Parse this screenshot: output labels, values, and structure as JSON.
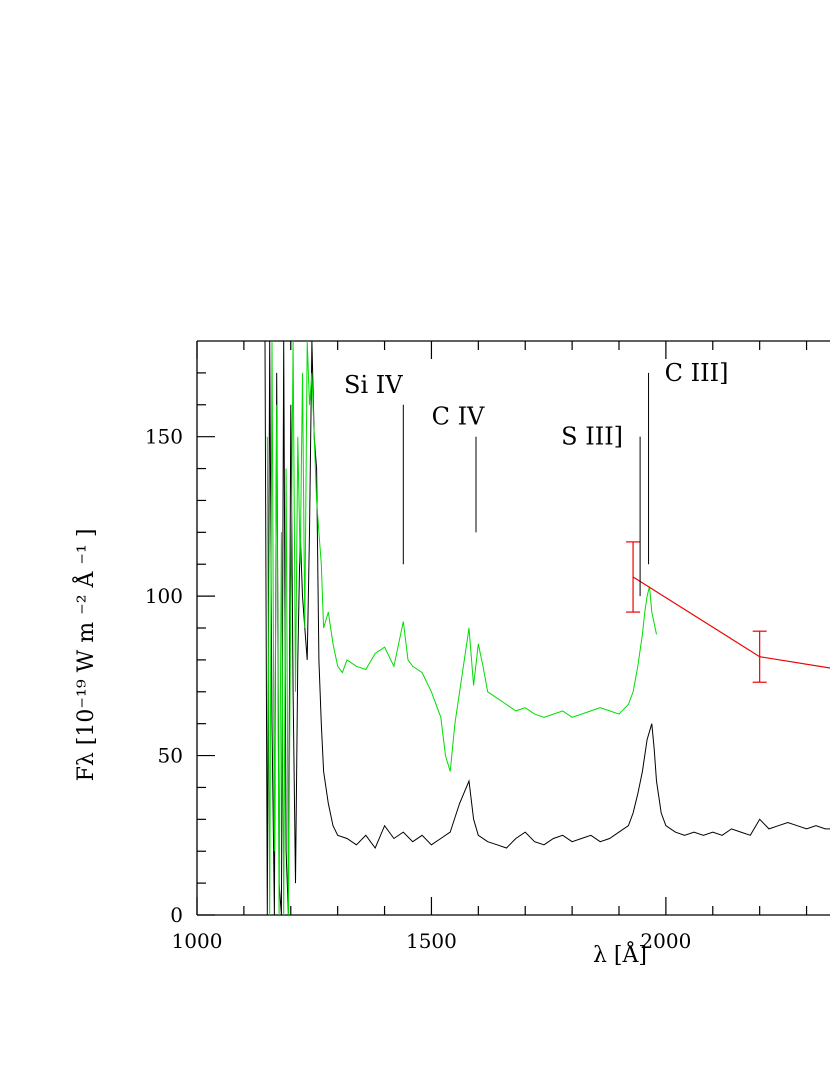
{
  "chart_data": {
    "type": "line",
    "xlabel": "λ [Å]",
    "ylabel": "F_λ [10^-19 W m^-2 Å^-1]",
    "ylabel_display": "Fλ [10⁻¹⁹ W m ⁻² Å ⁻¹ ]",
    "xlim": [
      1000,
      2370
    ],
    "ylim": [
      0,
      180
    ],
    "x_ticks_major": [
      1000,
      1500,
      2000
    ],
    "x_ticks_minor": [
      1100,
      1200,
      1300,
      1400,
      1600,
      1700,
      1800,
      1900,
      2100,
      2200,
      2300
    ],
    "y_ticks_major": [
      0,
      50,
      100,
      150
    ],
    "y_ticks_minor": [
      10,
      20,
      30,
      40,
      60,
      70,
      80,
      90,
      110,
      120,
      130,
      140,
      160,
      170
    ],
    "grid": false,
    "series": [
      {
        "color": "#000000",
        "x": [
          1145,
          1150,
          1155,
          1160,
          1165,
          1170,
          1175,
          1180,
          1185,
          1190,
          1195,
          1200,
          1205,
          1210,
          1215,
          1220,
          1225,
          1230,
          1235,
          1240,
          1245,
          1250,
          1255,
          1260,
          1265,
          1270,
          1280,
          1290,
          1300,
          1320,
          1340,
          1360,
          1380,
          1400,
          1420,
          1440,
          1460,
          1480,
          1500,
          1520,
          1540,
          1560,
          1580,
          1590,
          1600,
          1620,
          1640,
          1660,
          1680,
          1700,
          1720,
          1740,
          1760,
          1780,
          1800,
          1820,
          1840,
          1860,
          1880,
          1900,
          1920,
          1930,
          1940,
          1950,
          1960,
          1970,
          1975,
          1980,
          1990,
          2000,
          2020,
          2040,
          2060,
          2080,
          2100,
          2120,
          2140,
          2160,
          2180,
          2200,
          2220,
          2240,
          2260,
          2280,
          2300,
          2320,
          2340,
          2370
        ],
        "y": [
          180,
          0,
          180,
          60,
          0,
          170,
          10,
          0,
          180,
          20,
          0,
          160,
          70,
          10,
          80,
          120,
          100,
          90,
          80,
          120,
          180,
          150,
          140,
          80,
          60,
          45,
          35,
          28,
          25,
          24,
          22,
          25,
          21,
          28,
          24,
          26,
          23,
          25,
          22,
          24,
          26,
          35,
          42,
          30,
          25,
          23,
          22,
          21,
          24,
          26,
          23,
          22,
          24,
          25,
          23,
          24,
          25,
          23,
          24,
          26,
          28,
          32,
          38,
          45,
          55,
          60,
          52,
          42,
          32,
          28,
          26,
          25,
          26,
          25,
          26,
          25,
          27,
          26,
          25,
          30,
          27,
          28,
          29,
          28,
          27,
          28,
          27,
          27
        ]
      },
      {
        "color": "#00dd00",
        "x": [
          1150,
          1155,
          1160,
          1165,
          1170,
          1175,
          1180,
          1185,
          1190,
          1195,
          1200,
          1205,
          1210,
          1215,
          1220,
          1225,
          1230,
          1235,
          1240,
          1245,
          1250,
          1255,
          1260,
          1265,
          1270,
          1280,
          1290,
          1300,
          1310,
          1320,
          1340,
          1360,
          1380,
          1400,
          1420,
          1440,
          1450,
          1460,
          1480,
          1500,
          1520,
          1530,
          1540,
          1550,
          1560,
          1570,
          1580,
          1590,
          1600,
          1610,
          1620,
          1640,
          1660,
          1680,
          1700,
          1720,
          1740,
          1760,
          1780,
          1800,
          1820,
          1840,
          1860,
          1880,
          1900,
          1920,
          1930,
          1940,
          1950,
          1955,
          1960,
          1965,
          1970,
          1980
        ],
        "y": [
          150,
          0,
          180,
          20,
          160,
          0,
          120,
          0,
          140,
          0,
          100,
          180,
          70,
          150,
          110,
          170,
          90,
          180,
          160,
          170,
          150,
          130,
          120,
          110,
          90,
          95,
          85,
          78,
          76,
          80,
          78,
          77,
          82,
          84,
          78,
          92,
          80,
          78,
          76,
          70,
          62,
          50,
          45,
          60,
          70,
          80,
          90,
          72,
          85,
          78,
          70,
          68,
          66,
          64,
          65,
          63,
          62,
          63,
          64,
          62,
          63,
          64,
          65,
          64,
          63,
          66,
          70,
          78,
          88,
          95,
          100,
          103,
          95,
          88
        ]
      },
      {
        "color": "#ee0000",
        "x": [
          1930,
          2200,
          2370
        ],
        "y": [
          106,
          81,
          77
        ],
        "yerr": [
          11,
          8,
          0
        ]
      }
    ],
    "annotations": [
      {
        "text": "Si  IV",
        "x": 1440,
        "y_top": 160,
        "y_bottom": 110
      },
      {
        "text": "C  IV",
        "x": 1595,
        "y_top": 150,
        "y_bottom": 120
      },
      {
        "text": "S  III]",
        "x": 1945,
        "y_top": 150,
        "y_bottom": 100
      },
      {
        "text": "C  III]",
        "x": 1963,
        "y_top": 170,
        "y_bottom": 110
      }
    ]
  },
  "x_tick_labels": [
    "1000",
    "1500",
    "2000"
  ],
  "y_tick_labels": [
    "0",
    "50",
    "100",
    "150"
  ]
}
